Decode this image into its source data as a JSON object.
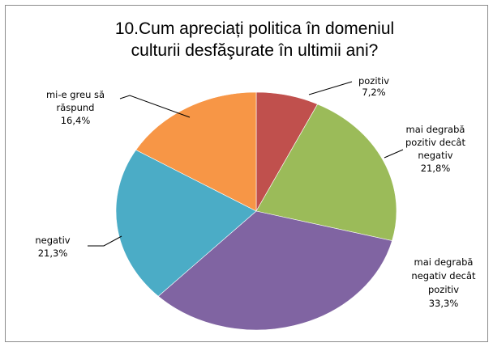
{
  "chart_data": {
    "type": "pie",
    "title_lines": [
      "10.Cum apreciați politica în domeniul",
      "culturii desfăşurate în ultimii ani?"
    ],
    "slices": [
      {
        "label_lines": [
          "pozitiv"
        ],
        "value_text": "7,2%",
        "value": 7.2,
        "color": "#c0504d"
      },
      {
        "label_lines": [
          "mai degrabă",
          "pozitiv decât",
          "negativ"
        ],
        "value_text": "21,8%",
        "value": 21.8,
        "color": "#9bbb59"
      },
      {
        "label_lines": [
          "mai degrabă",
          "negativ decât",
          "pozitiv"
        ],
        "value_text": "33,3%",
        "value": 33.3,
        "color": "#8064a2"
      },
      {
        "label_lines": [
          "negativ"
        ],
        "value_text": "21,3%",
        "value": 21.3,
        "color": "#4bacc6"
      },
      {
        "label_lines": [
          "mi-e greu să",
          "răspund"
        ],
        "value_text": "16,4%",
        "value": 16.4,
        "color": "#f79646"
      }
    ],
    "legend": "none"
  }
}
